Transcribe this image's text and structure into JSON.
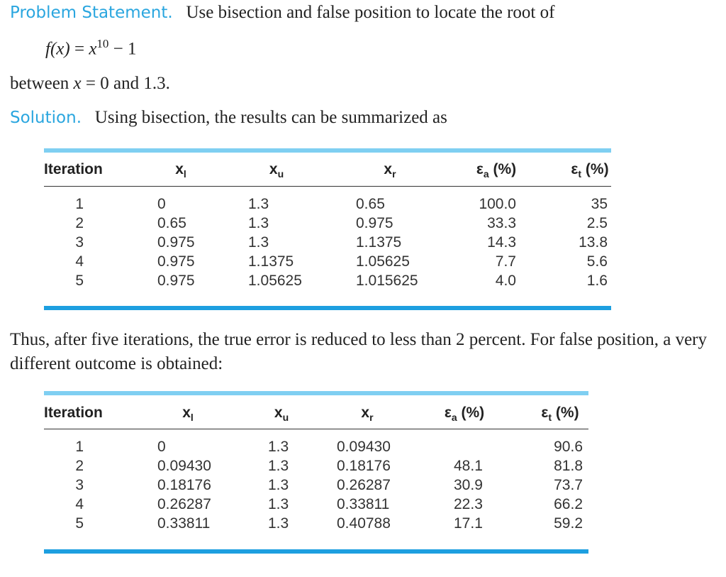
{
  "problem": {
    "label": "Problem Statement.",
    "text": "Use bisection and false position to locate the root of"
  },
  "equation": {
    "lhs": "f(x)",
    "rel": "=",
    "base": "x",
    "exponent": "10",
    "rest": "− 1"
  },
  "range": {
    "pre": "between",
    "var": "x",
    "post": "= 0 and 1.3."
  },
  "solution": {
    "label": "Solution.",
    "text": "Using bisection, the results can be summarized as"
  },
  "table1": {
    "headers": [
      {
        "symbol": "Iteration"
      },
      {
        "symbol": "x",
        "sub": "l"
      },
      {
        "symbol": "x",
        "sub": "u"
      },
      {
        "symbol": "x",
        "sub": "r"
      },
      {
        "symbol": "ε",
        "sub": "a",
        "unit": "(%)"
      },
      {
        "symbol": "ε",
        "sub": "t",
        "unit": "(%)"
      }
    ],
    "rows": [
      [
        "1",
        "0",
        "1.3",
        "0.65",
        "100.0",
        "35"
      ],
      [
        "2",
        "0.65",
        "1.3",
        "0.975",
        "33.3",
        "2.5"
      ],
      [
        "3",
        "0.975",
        "1.3",
        "1.1375",
        "14.3",
        "13.8"
      ],
      [
        "4",
        "0.975",
        "1.1375",
        "1.05625",
        "7.7",
        "5.6"
      ],
      [
        "5",
        "0.975",
        "1.05625",
        "1.015625",
        "4.0",
        "1.6"
      ]
    ]
  },
  "paragraph": "Thus, after five iterations, the true error is reduced to less than 2 percent. For false position, a very different outcome is obtained:",
  "table2": {
    "headers": [
      {
        "symbol": "Iteration"
      },
      {
        "symbol": "x",
        "sub": "l"
      },
      {
        "symbol": "x",
        "sub": "u"
      },
      {
        "symbol": "x",
        "sub": "r"
      },
      {
        "symbol": "ε",
        "sub": "a",
        "unit": "(%)"
      },
      {
        "symbol": "ε",
        "sub": "t",
        "unit": "(%)"
      }
    ],
    "rows": [
      [
        "1",
        "0",
        "1.3",
        "0.09430",
        null,
        "90.6"
      ],
      [
        "2",
        "0.09430",
        "1.3",
        "0.18176",
        "48.1",
        "81.8"
      ],
      [
        "3",
        "0.18176",
        "1.3",
        "0.26287",
        "30.9",
        "73.7"
      ],
      [
        "4",
        "0.26287",
        "1.3",
        "0.33811",
        "22.3",
        "66.2"
      ],
      [
        "5",
        "0.33811",
        "1.3",
        "0.40788",
        "17.1",
        "59.2"
      ]
    ]
  }
}
